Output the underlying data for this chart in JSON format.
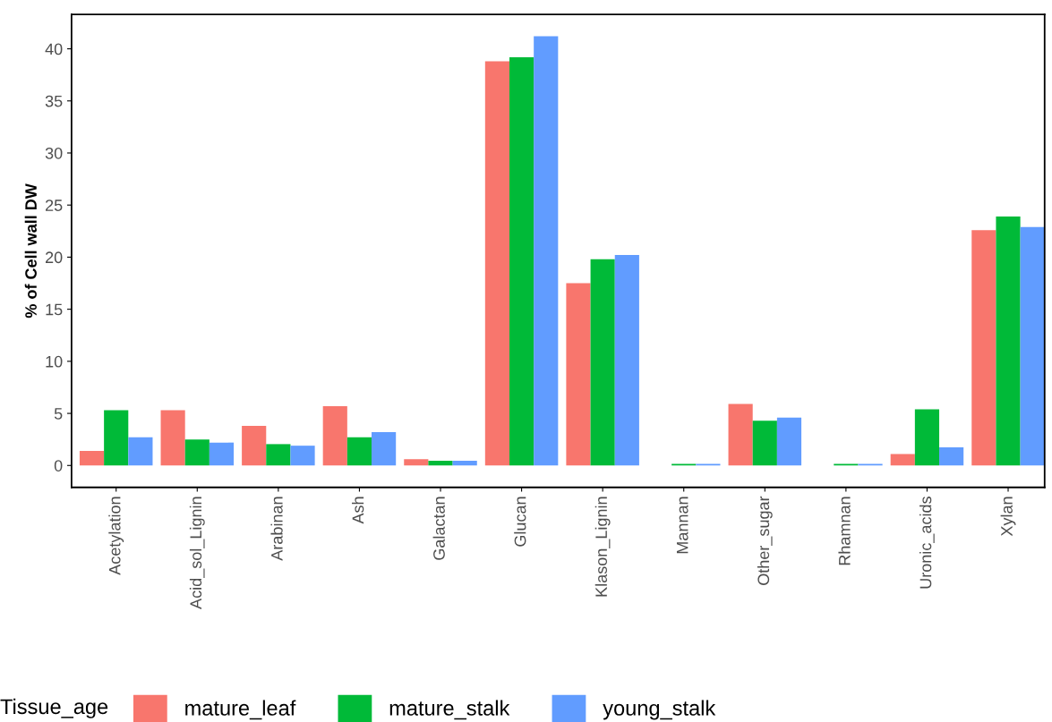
{
  "chart_data": {
    "type": "bar",
    "ylabel": "% of Cell wall DW",
    "legend_title": "Tissue_age",
    "legend": "bottom",
    "grid": false,
    "categories": [
      "Acetylation",
      "Acid_sol_Lignin",
      "Arabinan",
      "Ash",
      "Galactan",
      "Glucan",
      "Klason_Lignin",
      "Mannan",
      "Other_sugar",
      "Rhamnan",
      "Uronic_acids",
      "Xylan"
    ],
    "series": [
      {
        "name": "mature_leaf",
        "color": "#f8766d",
        "values": [
          1.4,
          5.3,
          3.8,
          5.7,
          0.6,
          38.8,
          17.5,
          null,
          5.9,
          null,
          1.1,
          22.6
        ]
      },
      {
        "name": "mature_stalk",
        "color": "#00ba38",
        "values": [
          5.3,
          2.5,
          2.05,
          2.7,
          0.45,
          39.2,
          19.8,
          0.15,
          4.3,
          0.15,
          5.4,
          23.9
        ]
      },
      {
        "name": "young_stalk",
        "color": "#619cff",
        "values": [
          2.7,
          2.2,
          1.9,
          3.2,
          0.45,
          41.2,
          20.2,
          0.15,
          4.6,
          0.15,
          1.75,
          22.9
        ]
      }
    ],
    "ylim": [
      -2.1,
      43.3
    ],
    "yticks": [
      0,
      5,
      10,
      15,
      20,
      25,
      30,
      35,
      40
    ]
  }
}
